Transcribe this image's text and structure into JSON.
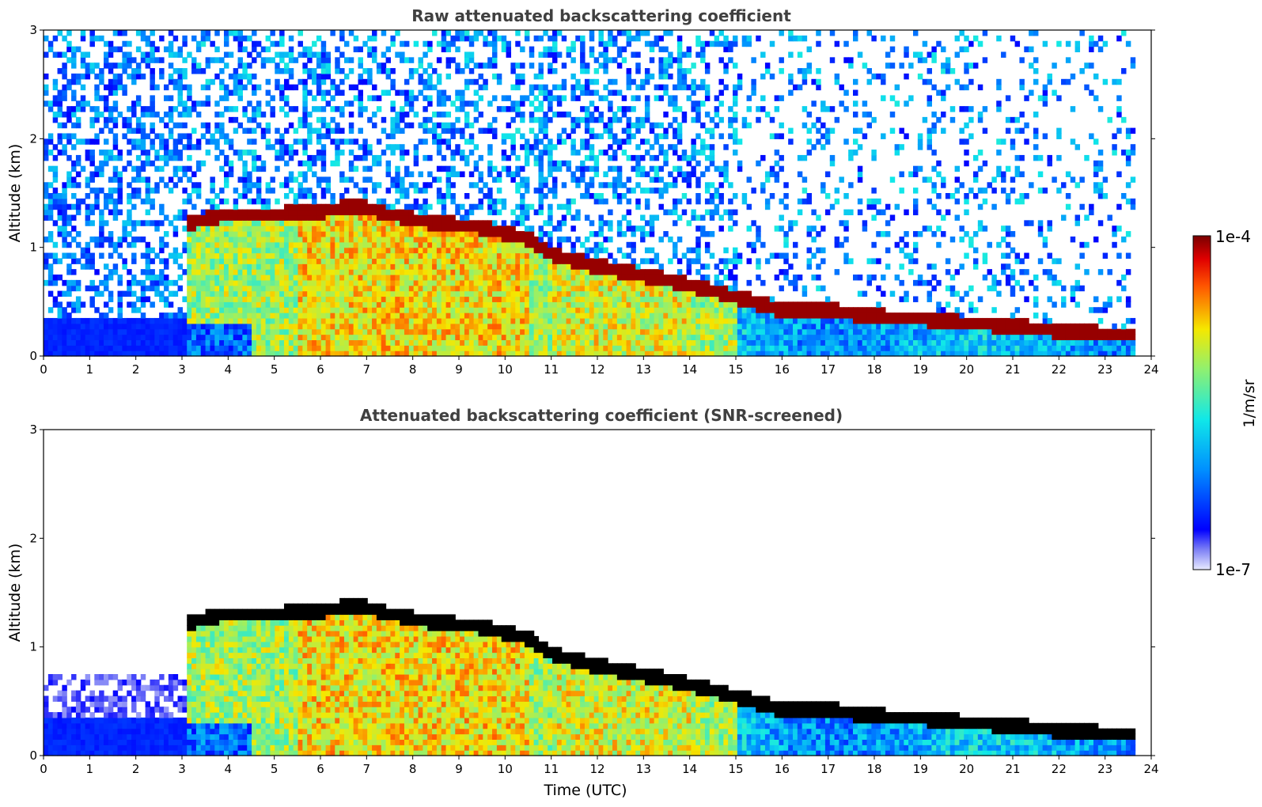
{
  "chart_data": [
    {
      "type": "heatmap",
      "title": "Raw attenuated backscattering coefficient",
      "xlabel": "",
      "ylabel": "Altitude (km)",
      "xlim": [
        0,
        24
      ],
      "ylim": [
        0,
        3
      ],
      "xticks": [
        0,
        1,
        2,
        3,
        4,
        5,
        6,
        7,
        8,
        9,
        10,
        11,
        12,
        13,
        14,
        15,
        16,
        17,
        18,
        19,
        20,
        21,
        22,
        23,
        24
      ],
      "yticks": [
        0,
        1,
        2,
        3
      ],
      "data_end_hour": 23.65,
      "cloud_base_km": [
        [
          3.1,
          1.22
        ],
        [
          4,
          1.3
        ],
        [
          5,
          1.3
        ],
        [
          5.9,
          1.32
        ],
        [
          6.8,
          1.38
        ],
        [
          7.5,
          1.3
        ],
        [
          8.5,
          1.22
        ],
        [
          9.5,
          1.18
        ],
        [
          10.5,
          1.08
        ],
        [
          11,
          0.93
        ],
        [
          12,
          0.82
        ],
        [
          13,
          0.74
        ],
        [
          14,
          0.65
        ],
        [
          15,
          0.54
        ],
        [
          16,
          0.42
        ],
        [
          17,
          0.42
        ],
        [
          18,
          0.36
        ],
        [
          19,
          0.34
        ],
        [
          20,
          0.3
        ],
        [
          21,
          0.27
        ],
        [
          22,
          0.23
        ],
        [
          23,
          0.2
        ],
        [
          23.6,
          0.2
        ]
      ],
      "screened": false
    },
    {
      "type": "heatmap",
      "title": "Attenuated backscattering coefficient (SNR-screened)",
      "xlabel": "Time (UTC)",
      "ylabel": "Altitude (km)",
      "xlim": [
        0,
        24
      ],
      "ylim": [
        0,
        3
      ],
      "xticks": [
        0,
        1,
        2,
        3,
        4,
        5,
        6,
        7,
        8,
        9,
        10,
        11,
        12,
        13,
        14,
        15,
        16,
        17,
        18,
        19,
        20,
        21,
        22,
        23,
        24
      ],
      "yticks": [
        0,
        1,
        2,
        3
      ],
      "data_end_hour": 23.65,
      "cloud_base_km": [
        [
          3.1,
          1.22
        ],
        [
          4,
          1.3
        ],
        [
          5,
          1.3
        ],
        [
          5.9,
          1.32
        ],
        [
          6.8,
          1.38
        ],
        [
          7.5,
          1.3
        ],
        [
          8.5,
          1.22
        ],
        [
          9.5,
          1.18
        ],
        [
          10.5,
          1.08
        ],
        [
          11,
          0.93
        ],
        [
          12,
          0.82
        ],
        [
          13,
          0.74
        ],
        [
          14,
          0.65
        ],
        [
          15,
          0.54
        ],
        [
          16,
          0.42
        ],
        [
          17,
          0.42
        ],
        [
          18,
          0.36
        ],
        [
          19,
          0.34
        ],
        [
          20,
          0.3
        ],
        [
          21,
          0.27
        ],
        [
          22,
          0.23
        ],
        [
          23,
          0.2
        ],
        [
          23.6,
          0.2
        ]
      ],
      "screened": true
    }
  ],
  "colorbar": {
    "label": "1/m/sr",
    "max_label": "1e-4",
    "min_label": "1e-7",
    "colormap": "jet",
    "scale": "log"
  }
}
